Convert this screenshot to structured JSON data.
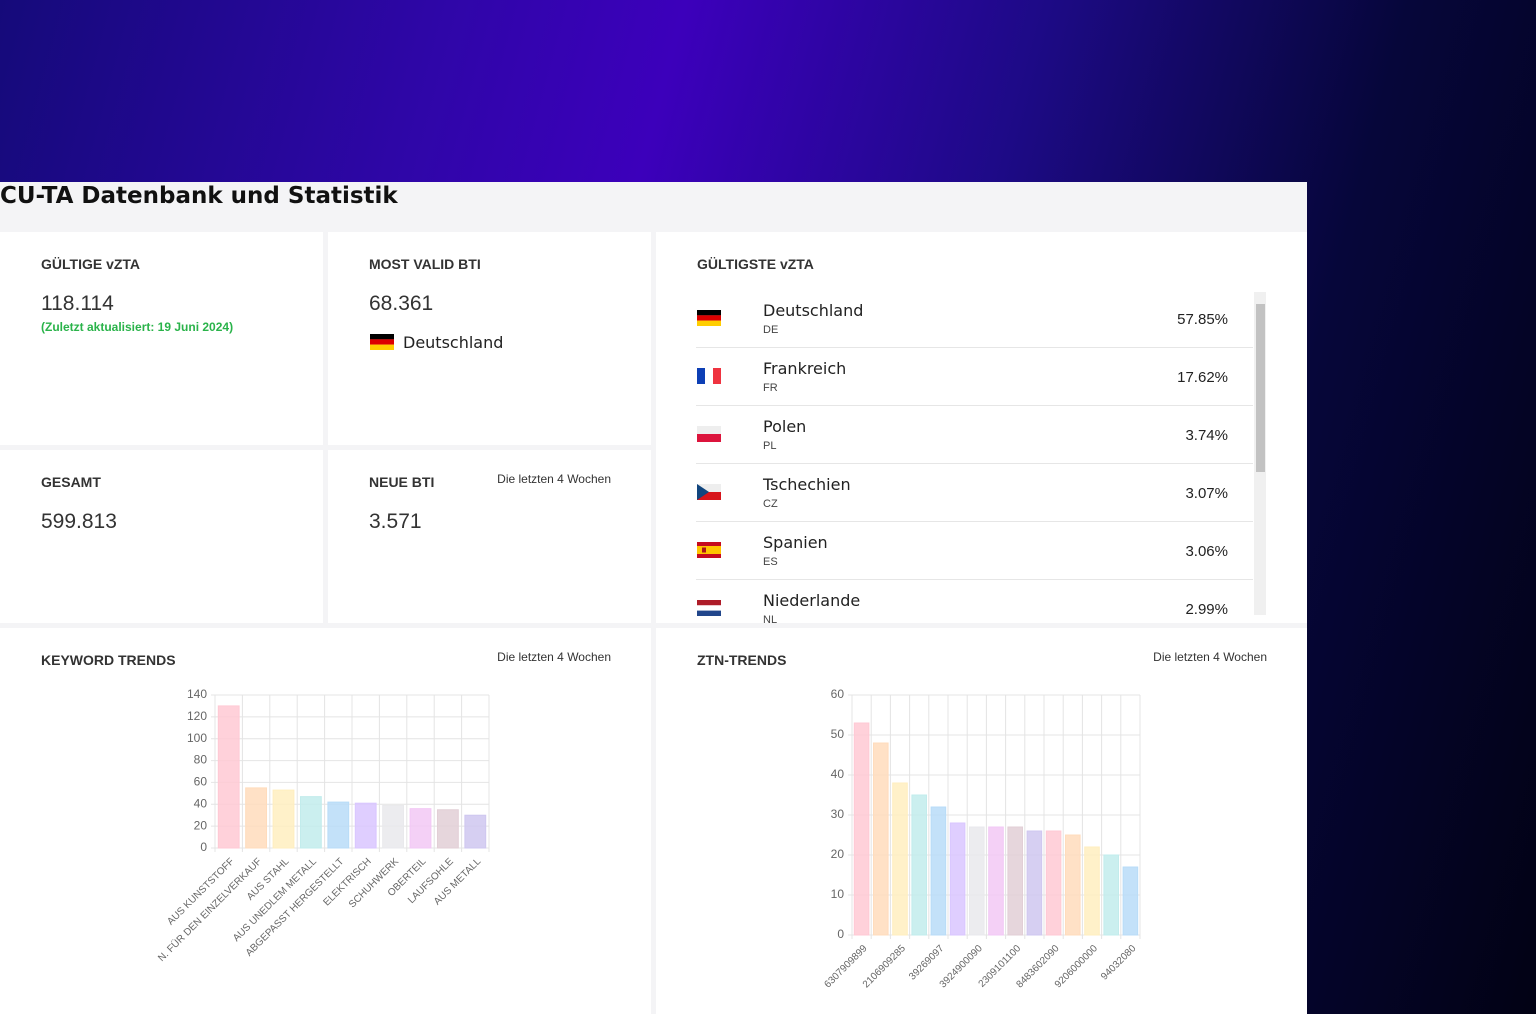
{
  "header": {
    "title": "CU-TA Datenbank und Statistik"
  },
  "cards": {
    "valid_vzta": {
      "title": "GÜLTIGE vZTA",
      "value": "118.114",
      "updated": "(Zuletzt aktualisiert: 19 Juni 2024)"
    },
    "most_valid_bti": {
      "title": "MOST VALID BTI",
      "value": "68.361",
      "country": "Deutschland"
    },
    "total": {
      "title": "GESAMT",
      "value": "599.813"
    },
    "new_bti": {
      "title": "NEUE BTI",
      "note": "Die letzten 4 Wochen",
      "value": "3.571"
    },
    "most_valid_list": {
      "title": "GÜLTIGSTE vZTA",
      "countries": [
        {
          "name": "Deutschland",
          "code": "DE",
          "share": "57.85%"
        },
        {
          "name": "Frankreich",
          "code": "FR",
          "share": "17.62%"
        },
        {
          "name": "Polen",
          "code": "PL",
          "share": "3.74%"
        },
        {
          "name": "Tschechien",
          "code": "CZ",
          "share": "3.07%"
        },
        {
          "name": "Spanien",
          "code": "ES",
          "share": "3.06%"
        },
        {
          "name": "Niederlande",
          "code": "NL",
          "share": "2.99%"
        }
      ]
    }
  },
  "chart_data": [
    {
      "type": "bar",
      "title": "KEYWORD TRENDS",
      "subtitle": "Die letzten 4 Wochen",
      "categories": [
        "AUS KUNSTSTOFF",
        "N. FÜR DEN EINZELVERKAUF",
        "AUS STAHL",
        "AUS UNEDLEM METALL",
        "ABGEPASST HERGESTELLT",
        "ELEKTRISCH",
        "SCHUHWERK",
        "OBERTEIL",
        "LAUFSOHLE",
        "AUS METALL"
      ],
      "values": [
        130,
        55,
        53,
        47,
        42,
        41,
        39,
        36,
        35,
        30
      ],
      "colors": [
        "#ffc9d4",
        "#ffdcbc",
        "#ffeebf",
        "#c2ecec",
        "#b8dcf8",
        "#d9c6ff",
        "#e9e9ec",
        "#f2c8f5",
        "#e2cfd6",
        "#cfc7f0"
      ],
      "ylim": [
        0,
        140
      ],
      "yticks": [
        0,
        20,
        40,
        60,
        80,
        100,
        120,
        140
      ],
      "grid": true
    },
    {
      "type": "bar",
      "title": "ZTN-TRENDS",
      "subtitle": "Die letzten 4 Wochen",
      "categories": [
        "6307909899",
        null,
        "2106909285",
        null,
        "39269097",
        null,
        "3924900090",
        null,
        "2309101100",
        null,
        "8483602090",
        null,
        "9206000000",
        null,
        "94032080"
      ],
      "values": [
        53,
        48,
        38,
        35,
        32,
        28,
        27,
        27,
        27,
        26,
        26,
        25,
        22,
        20,
        17
      ],
      "colors": [
        "#ffc9d4",
        "#ffdcbc",
        "#ffeebf",
        "#c2ecec",
        "#b8dcf8",
        "#d9c6ff",
        "#e9e9ec",
        "#f2c8f5",
        "#e2cfd6",
        "#cfc7f0",
        "#ffc9d4",
        "#ffdcbc",
        "#ffeebf",
        "#c2ecec",
        "#b8dcf8"
      ],
      "ylim": [
        0,
        60
      ],
      "yticks": [
        0,
        10,
        20,
        30,
        40,
        50,
        60
      ],
      "grid": true
    }
  ]
}
